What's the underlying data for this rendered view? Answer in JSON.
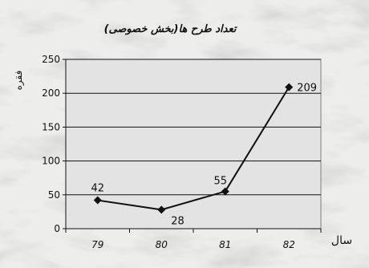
{
  "chart_data": {
    "type": "line",
    "title": "تعداد طرح ها(بخش خصوصی)",
    "xlabel": "سال",
    "ylabel": "فقره",
    "categories": [
      "79",
      "80",
      "81",
      "82"
    ],
    "series": [
      {
        "values": [
          42,
          28,
          55,
          209
        ]
      }
    ],
    "data_labels": [
      "42",
      "28",
      "55",
      "209"
    ],
    "ylim": [
      0,
      250
    ],
    "yticks": [
      0,
      50,
      100,
      150,
      200,
      250
    ],
    "grid": true,
    "legend": "none"
  },
  "colors": {
    "background": "#e8e8e6",
    "plot_area": "#e3e3e3",
    "line": "#111111",
    "grid": "#111111"
  }
}
